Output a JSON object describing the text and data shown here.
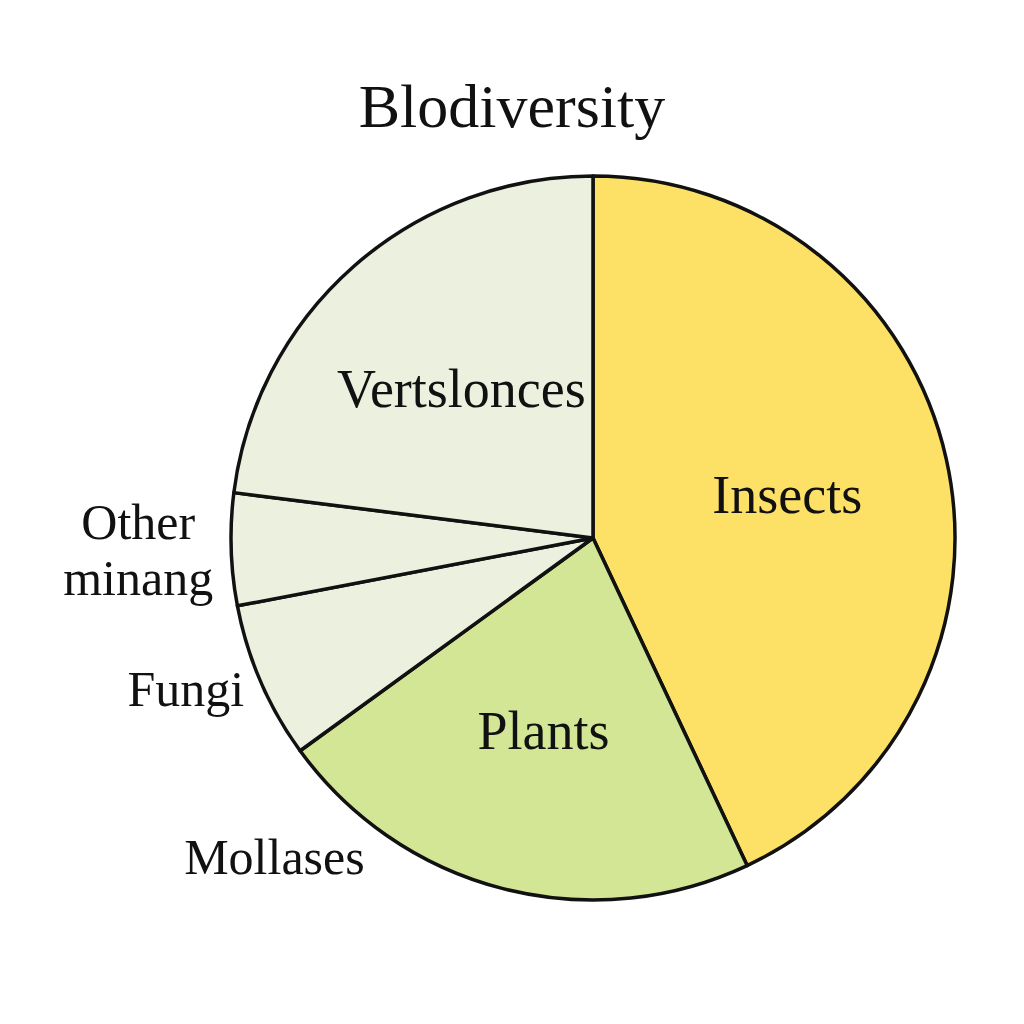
{
  "chart_data": {
    "type": "pie",
    "title": "Blodiversity",
    "categories": [
      "Insects",
      "Plants",
      "Fungi",
      "Other minang",
      "Vertslonces"
    ],
    "values": [
      43,
      22,
      7,
      5,
      23
    ],
    "colors": [
      "#fde066",
      "#d2e696",
      "#ecf0de",
      "#ecf0de",
      "#ecf0de"
    ],
    "annotations": [
      "Mollases"
    ]
  }
}
